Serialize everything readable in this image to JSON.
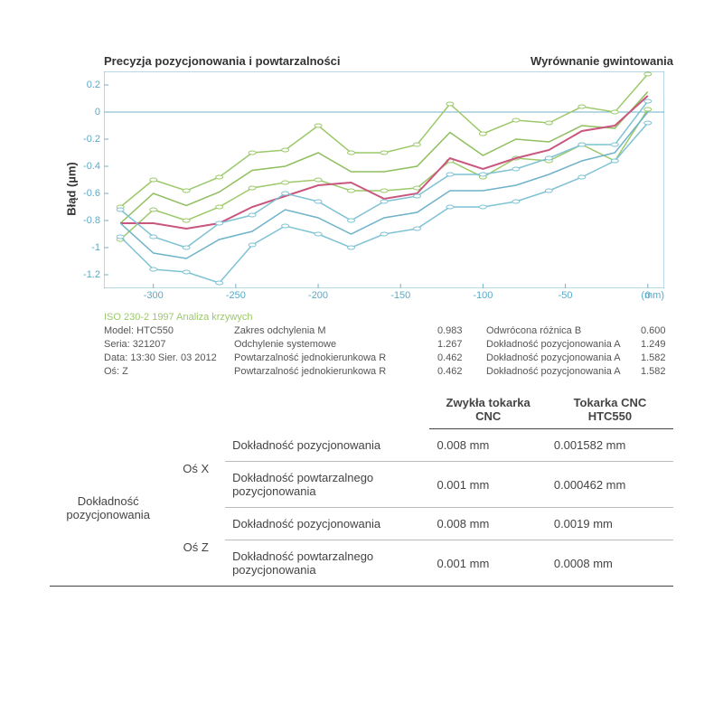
{
  "titles": {
    "left": "Precyzja pozycjonowania i powtarzalności",
    "right": "Wyrównanie gwintowania"
  },
  "chart": {
    "type": "line",
    "ylabel": "Błąd (µm)",
    "xunit": "(mm)",
    "xlim": [
      -330,
      10
    ],
    "ylim": [
      -1.3,
      0.3
    ],
    "xticks": [
      -300,
      -250,
      -200,
      -150,
      -100,
      -50,
      0
    ],
    "yticks": [
      0.2,
      0,
      -0.2,
      -0.4,
      -0.6,
      -0.8,
      -1,
      -1.2
    ],
    "background_color": "#ffffff",
    "axis_color": "#6fb2c9",
    "tick_color": "#5aa9c7",
    "zero_line": true,
    "marker": "ellipse",
    "marker_rx": 4,
    "marker_ry": 2,
    "line_width": 1.5,
    "x": [
      -320,
      -300,
      -280,
      -260,
      -240,
      -220,
      -200,
      -180,
      -160,
      -140,
      -120,
      -100,
      -80,
      -60,
      -40,
      -20,
      0
    ],
    "series": [
      {
        "name": "upper_green",
        "color": "#9cc96a",
        "markers": true,
        "y": [
          -0.7,
          -0.5,
          -0.58,
          -0.48,
          -0.3,
          -0.28,
          -0.1,
          -0.3,
          -0.3,
          -0.24,
          0.06,
          -0.16,
          -0.06,
          -0.08,
          0.04,
          0.0,
          0.28
        ]
      },
      {
        "name": "mid_green",
        "color": "#8fbf5e",
        "markers": false,
        "y": [
          -0.82,
          -0.6,
          -0.69,
          -0.59,
          -0.43,
          -0.4,
          -0.3,
          -0.44,
          -0.44,
          -0.4,
          -0.15,
          -0.32,
          -0.2,
          -0.22,
          -0.1,
          -0.12,
          0.15
        ]
      },
      {
        "name": "lower_green",
        "color": "#9cc96a",
        "markers": true,
        "y": [
          -0.94,
          -0.72,
          -0.8,
          -0.7,
          -0.56,
          -0.52,
          -0.5,
          -0.58,
          -0.58,
          -0.56,
          -0.36,
          -0.48,
          -0.34,
          -0.36,
          -0.24,
          -0.36,
          0.02
        ]
      },
      {
        "name": "pink_center",
        "color": "#c9567e",
        "markers": false,
        "width": 2,
        "y": [
          -0.82,
          -0.82,
          -0.86,
          -0.82,
          -0.7,
          -0.62,
          -0.54,
          -0.52,
          -0.64,
          -0.6,
          -0.34,
          -0.42,
          -0.34,
          -0.28,
          -0.14,
          -0.1,
          0.12
        ]
      },
      {
        "name": "upper_blue",
        "color": "#7fc2d4",
        "markers": true,
        "y": [
          -0.72,
          -0.92,
          -1.0,
          -0.82,
          -0.76,
          -0.6,
          -0.66,
          -0.8,
          -0.66,
          -0.62,
          -0.46,
          -0.46,
          -0.42,
          -0.34,
          -0.24,
          -0.24,
          0.08
        ]
      },
      {
        "name": "mid_blue",
        "color": "#6fb2c9",
        "markers": false,
        "y": [
          -0.82,
          -1.04,
          -1.08,
          -0.94,
          -0.88,
          -0.72,
          -0.78,
          -0.9,
          -0.78,
          -0.74,
          -0.58,
          -0.58,
          -0.54,
          -0.46,
          -0.36,
          -0.3,
          0.0
        ]
      },
      {
        "name": "lower_blue",
        "color": "#7fc2d4",
        "markers": true,
        "y": [
          -0.92,
          -1.16,
          -1.18,
          -1.26,
          -0.98,
          -0.84,
          -0.9,
          -1.0,
          -0.9,
          -0.86,
          -0.7,
          -0.7,
          -0.66,
          -0.58,
          -0.48,
          -0.36,
          -0.08
        ]
      }
    ]
  },
  "iso": "ISO 230-2   1997  Analiza krzywych",
  "meta": {
    "col1": [
      "Model: HTC550",
      "Seria: 321207",
      "Data: 13:30 Sier. 03 2012",
      "Oś: Z"
    ],
    "col2": [
      "Zakres odchylenia M",
      "Odchylenie systemowe",
      "Powtarzalność jednokierunkowa R",
      "Powtarzalność jednokierunkowa R"
    ],
    "col3": [
      "0.983",
      "1.267",
      "0.462",
      "0.462"
    ],
    "col4": [
      "Odwrócona różnica B",
      "Dokładność pozycjonowania A",
      "Dokładność pozycjonowania A",
      "Dokładność pozycjonowania A"
    ],
    "col5": [
      "0.600",
      "1.249",
      "1.582",
      "1.582"
    ]
  },
  "table": {
    "headers": [
      "",
      "",
      "",
      "Zwykła tokarka CNC",
      "Tokarka CNC HTC550"
    ],
    "group_label": "Dokładność pozycjonowania",
    "axes": [
      "Oś X",
      "Oś Z"
    ],
    "row_labels": [
      "Dokładność pozycjonowania",
      "Dokładność powtarzalnego pozycjonowania"
    ],
    "values": {
      "x_pos": [
        "0.008 mm",
        "0.001582 mm"
      ],
      "x_rep": [
        "0.001 mm",
        "0.000462 mm"
      ],
      "z_pos": [
        "0.008 mm",
        "0.0019 mm"
      ],
      "z_rep": [
        "0.001 mm",
        "0.0008 mm"
      ]
    }
  }
}
